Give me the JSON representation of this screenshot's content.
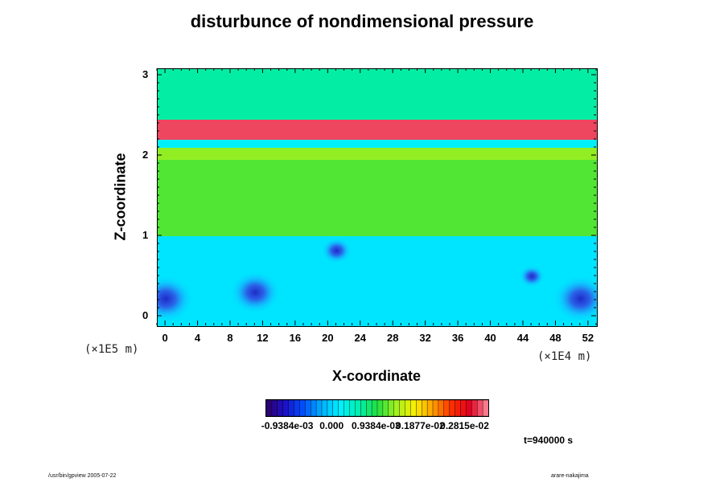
{
  "chart_data": {
    "type": "heatmap",
    "title": "disturbunce of nondimensional pressure",
    "xlabel": "X-coordinate",
    "ylabel": "Z-coordinate",
    "x_unit": "(×1E4 m)",
    "y_unit": "(×1E5 m)",
    "x_ticks": [
      "0",
      "4",
      "8",
      "12",
      "16",
      "20",
      "24",
      "28",
      "32",
      "36",
      "40",
      "44",
      "48",
      "52"
    ],
    "y_ticks": [
      "0",
      "1",
      "2",
      "3"
    ],
    "xlim": [
      -1,
      53
    ],
    "ylim": [
      -0.12,
      3.08
    ],
    "colorbar_labels": [
      "-0.9384e-03",
      "0.000",
      "0.9384e-03",
      "0.1877e-02",
      "0.2815e-02"
    ],
    "colorbar_range": [
      -0.0014,
      0.0033
    ],
    "bands": [
      {
        "z_from": -0.12,
        "z_to": 1.0,
        "value_approx": 0.0001
      },
      {
        "z_from": 1.0,
        "z_to": 1.95,
        "value_approx": 0.0011
      },
      {
        "z_from": 1.95,
        "z_to": 2.1,
        "value_approx": 0.0013
      },
      {
        "z_from": 2.1,
        "z_to": 2.2,
        "value_approx": 0.0002
      },
      {
        "z_from": 2.2,
        "z_to": 2.45,
        "value_approx": 0.0031
      },
      {
        "z_from": 2.45,
        "z_to": 3.08,
        "value_approx": 0.0006
      }
    ],
    "minima": [
      {
        "x": 0,
        "z": 0.22,
        "value_approx": -0.0008
      },
      {
        "x": 11,
        "z": 0.3,
        "value_approx": -0.0007
      },
      {
        "x": 21,
        "z": 0.82,
        "value_approx": -0.0003
      },
      {
        "x": 45,
        "z": 0.5,
        "value_approx": -0.0002
      },
      {
        "x": 51,
        "z": 0.22,
        "value_approx": -0.0008
      }
    ],
    "time_label": "t=940000 s"
  },
  "footer": {
    "left": "/usr/bin/gpview 2005-07-22",
    "right": "arare-nakajima"
  }
}
